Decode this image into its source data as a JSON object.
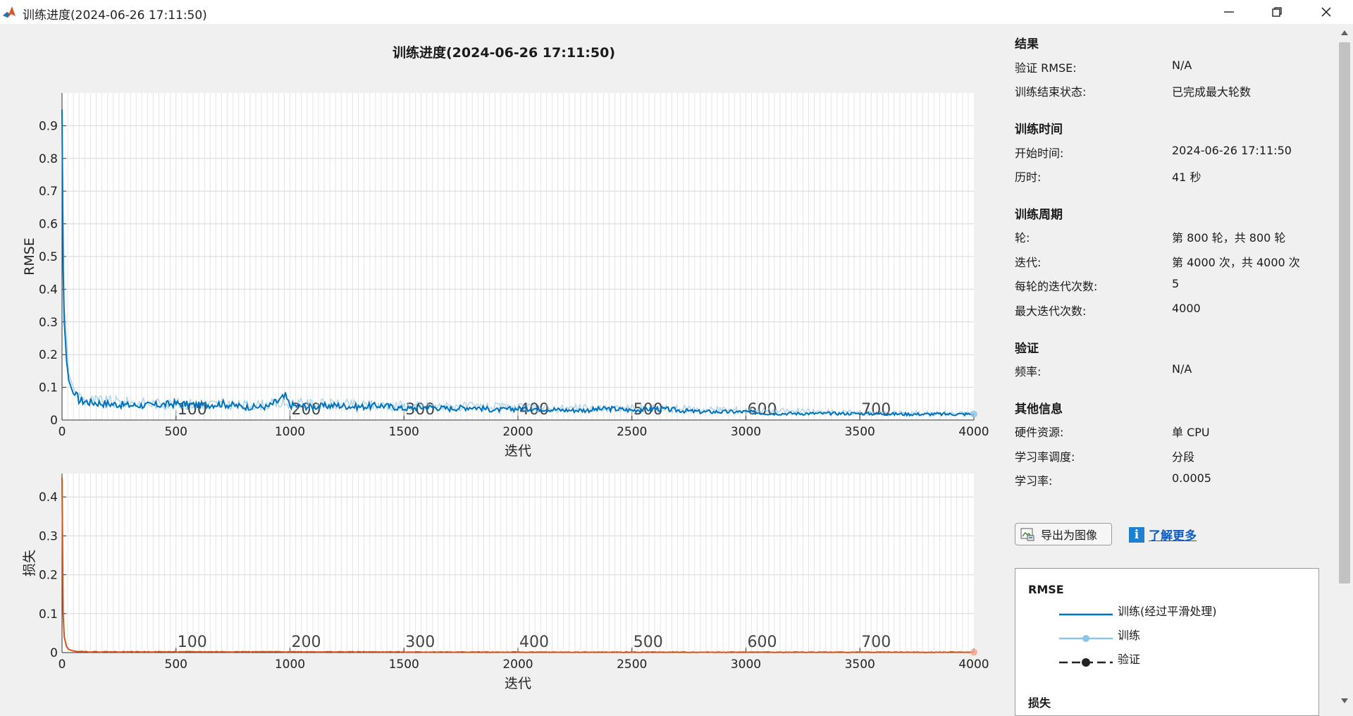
{
  "window": {
    "title": "训练进度(2024-06-26 17:11:50)"
  },
  "plot": {
    "title": "训练进度(2024-06-26 17:11:50)"
  },
  "chart_data": [
    {
      "type": "line",
      "ylabel": "RMSE",
      "xlabel": "迭代",
      "xlim": [
        0,
        4000
      ],
      "ylim": [
        0,
        1.0
      ],
      "x_ticks": [
        "0",
        "500",
        "1000",
        "1500",
        "2000",
        "2500",
        "3000",
        "3500",
        "4000"
      ],
      "y_ticks": [
        "0",
        "0.1",
        "0.2",
        "0.3",
        "0.4",
        "0.5",
        "0.6",
        "0.7",
        "0.8",
        "0.9"
      ],
      "y_tick_values": [
        0,
        0.1,
        0.2,
        0.3,
        0.4,
        0.5,
        0.6,
        0.7,
        0.8,
        0.9
      ],
      "epoch_labels": [
        "100",
        "200",
        "300",
        "400",
        "500",
        "600",
        "700"
      ],
      "epoch_label_x": [
        500,
        1000,
        1500,
        2000,
        2500,
        3000,
        3500
      ],
      "grid": true,
      "series": [
        {
          "name": "训练(经过平滑处理)",
          "color": "#0072bd",
          "x": [
            0,
            5,
            10,
            20,
            30,
            50,
            80,
            120,
            200,
            300,
            400,
            500,
            600,
            700,
            800,
            900,
            980,
            1000,
            1100,
            1200,
            1300,
            1400,
            1500,
            1600,
            1700,
            1800,
            1900,
            2000,
            2100,
            2200,
            2300,
            2400,
            2500,
            2600,
            2700,
            2800,
            2900,
            3000,
            3100,
            3300,
            3500,
            3700,
            3900,
            4000
          ],
          "y": [
            0.95,
            0.46,
            0.3,
            0.18,
            0.12,
            0.08,
            0.06,
            0.055,
            0.05,
            0.045,
            0.045,
            0.05,
            0.045,
            0.05,
            0.04,
            0.04,
            0.07,
            0.045,
            0.04,
            0.045,
            0.04,
            0.045,
            0.035,
            0.04,
            0.035,
            0.04,
            0.03,
            0.035,
            0.035,
            0.03,
            0.03,
            0.035,
            0.03,
            0.035,
            0.03,
            0.025,
            0.025,
            0.025,
            0.02,
            0.02,
            0.02,
            0.018,
            0.018,
            0.018
          ]
        },
        {
          "name": "训练",
          "color": "#8ec4e6",
          "x": [
            0,
            10,
            30,
            60,
            100,
            200,
            400,
            600,
            800,
            1000,
            1400,
            1800,
            2200,
            2600,
            3000,
            3500,
            4000
          ],
          "y": [
            0.95,
            0.35,
            0.14,
            0.08,
            0.06,
            0.055,
            0.05,
            0.05,
            0.045,
            0.05,
            0.045,
            0.04,
            0.035,
            0.035,
            0.03,
            0.022,
            0.02
          ]
        }
      ]
    },
    {
      "type": "line",
      "ylabel": "损失",
      "xlabel": "迭代",
      "xlim": [
        0,
        4000
      ],
      "ylim": [
        0,
        0.46
      ],
      "x_ticks": [
        "0",
        "500",
        "1000",
        "1500",
        "2000",
        "2500",
        "3000",
        "3500",
        "4000"
      ],
      "y_ticks": [
        "0",
        "0.1",
        "0.2",
        "0.3",
        "0.4"
      ],
      "y_tick_values": [
        0,
        0.1,
        0.2,
        0.3,
        0.4
      ],
      "epoch_labels": [
        "100",
        "200",
        "300",
        "400",
        "500",
        "600",
        "700"
      ],
      "epoch_label_x": [
        500,
        1000,
        1500,
        2000,
        2500,
        3000,
        3500
      ],
      "grid": true,
      "series": [
        {
          "name": "损失",
          "color": "#d95319",
          "x": [
            0,
            5,
            10,
            20,
            30,
            50,
            80,
            120,
            200,
            500,
            1000,
            2000,
            3000,
            4000
          ],
          "y": [
            0.45,
            0.1,
            0.04,
            0.015,
            0.008,
            0.004,
            0.003,
            0.002,
            0.002,
            0.002,
            0.002,
            0.001,
            0.001,
            0.001
          ]
        }
      ]
    }
  ],
  "panel": {
    "results": {
      "title": "结果",
      "val_rmse_label": "验证 RMSE:",
      "val_rmse_value": "N/A",
      "end_status_label": "训练结束状态:",
      "end_status_value": "已完成最大轮数"
    },
    "time": {
      "title": "训练时间",
      "start_label": "开始时间:",
      "start_value": "2024-06-26 17:11:50",
      "elapsed_label": "历时:",
      "elapsed_value": "41 秒"
    },
    "cycle": {
      "title": "训练周期",
      "epoch_label": "轮:",
      "epoch_value": "第 800 轮，共 800 轮",
      "iter_label": "迭代:",
      "iter_value": "第 4000 次，共 4000 次",
      "iter_per_epoch_label": "每轮的迭代次数:",
      "iter_per_epoch_value": "5",
      "max_iter_label": "最大迭代次数:",
      "max_iter_value": "4000"
    },
    "validation": {
      "title": "验证",
      "freq_label": "频率:",
      "freq_value": "N/A"
    },
    "other": {
      "title": "其他信息",
      "hw_label": "硬件资源:",
      "hw_value": "单 CPU",
      "lr_sched_label": "学习率调度:",
      "lr_sched_value": "分段",
      "lr_label": "学习率:",
      "lr_value": "0.0005"
    },
    "export_button": "导出为图像",
    "learn_more": "了解更多",
    "legend": {
      "rmse_title": "RMSE",
      "smoothed": "训练(经过平滑处理)",
      "train": "训练",
      "validation": "验证",
      "loss_title": "损失"
    }
  },
  "colors": {
    "rmse_smoothed": "#0072bd",
    "rmse_raw": "#8ec4e6",
    "loss": "#d95319",
    "link": "#0b5cc7"
  }
}
